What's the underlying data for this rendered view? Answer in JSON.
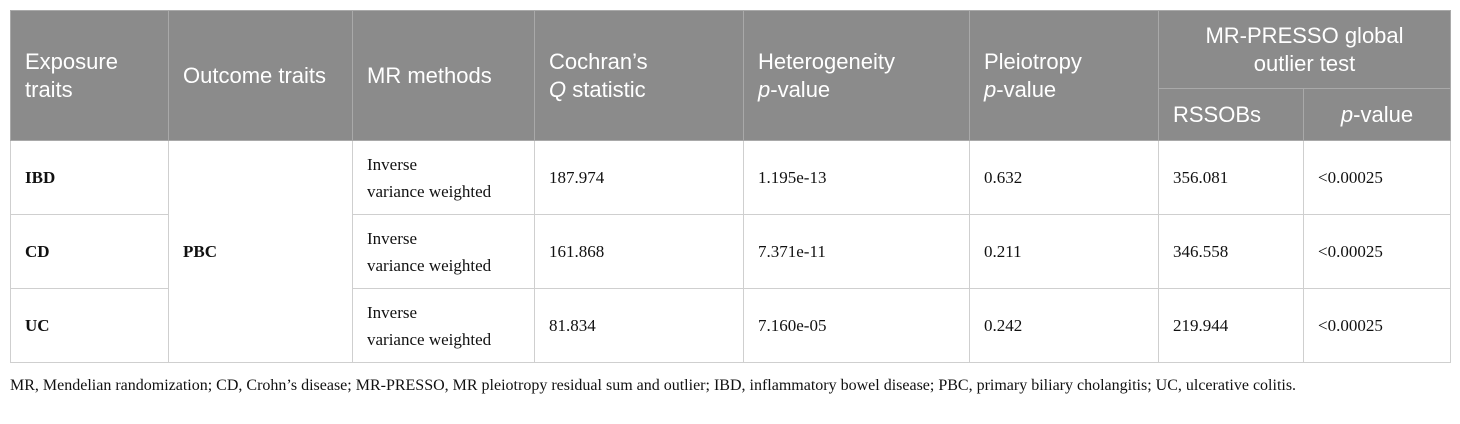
{
  "table": {
    "header": {
      "exposure": "Exposure traits",
      "outcome": "Outcome traits",
      "methods": "MR methods",
      "cochran": {
        "before": "Cochran’s",
        "italic": "Q",
        "after": " statistic"
      },
      "heterogeneity": {
        "before": "Heterogeneity",
        "italic": "p",
        "after": "-value"
      },
      "pleiotropy": {
        "before": "Pleiotropy",
        "italic": "p",
        "after": "-value"
      },
      "presso": "MR-PRESSO global outlier test",
      "rssobs": "RSSOBs",
      "presso_p": {
        "italic": "p",
        "after": "-value"
      }
    },
    "outcome": "PBC",
    "rows": [
      {
        "exposure": "IBD",
        "method": [
          "Inverse",
          "variance weighted"
        ],
        "q": "187.974",
        "het_p": "1.195e-13",
        "pleio_p": "0.632",
        "rssobs": "356.081",
        "presso_p": "<0.00025"
      },
      {
        "exposure": "CD",
        "method": [
          "Inverse",
          "variance weighted"
        ],
        "q": "161.868",
        "het_p": "7.371e-11",
        "pleio_p": "0.211",
        "rssobs": "346.558",
        "presso_p": "<0.00025"
      },
      {
        "exposure": "UC",
        "method": [
          "Inverse",
          "variance weighted"
        ],
        "q": "81.834",
        "het_p": "7.160e-05",
        "pleio_p": "0.242",
        "rssobs": "219.944",
        "presso_p": "<0.00025"
      }
    ]
  },
  "footnote": "MR, Mendelian randomization; CD, Crohn’s disease; MR-PRESSO, MR pleiotropy residual sum and outlier; IBD, inflammatory bowel disease; PBC, primary biliary cholangitis; UC, ulcerative colitis."
}
